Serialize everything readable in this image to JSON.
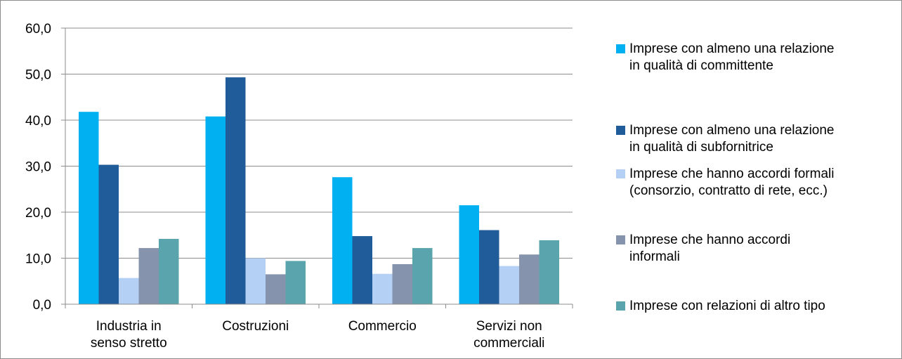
{
  "chart_data": {
    "type": "bar",
    "categories": [
      "Industria in\nsenso stretto",
      "Costruzioni",
      "Commercio",
      "Servizi non\ncommerciali"
    ],
    "series": [
      {
        "name": "Imprese con almeno una relazione\nin qualità di committente",
        "color": "#00b0f0",
        "values": [
          41.8,
          40.8,
          27.6,
          21.5
        ]
      },
      {
        "name": "Imprese  con almeno una relazione\nin qualità di subfornitrice",
        "color": "#1f5c99",
        "values": [
          30.3,
          49.3,
          14.8,
          16.1
        ]
      },
      {
        "name": "Imprese che hanno accordi formali\n(consorzio, contratto di rete, ecc.)",
        "color": "#b4d0f5",
        "values": [
          5.7,
          10.0,
          6.6,
          8.3
        ]
      },
      {
        "name": "Imprese che hanno accordi\ninformali",
        "color": "#8593ac",
        "values": [
          12.2,
          6.5,
          8.7,
          10.8
        ]
      },
      {
        "name": "Imprese con relazioni di altro tipo",
        "color": "#5aa5ad",
        "values": [
          14.2,
          9.4,
          12.2,
          13.9
        ]
      }
    ],
    "ylim": [
      0,
      60
    ],
    "yticks": [
      "0,0",
      "10,0",
      "20,0",
      "30,0",
      "40,0",
      "50,0",
      "60,0"
    ],
    "grid": true,
    "legend_position": "right"
  }
}
